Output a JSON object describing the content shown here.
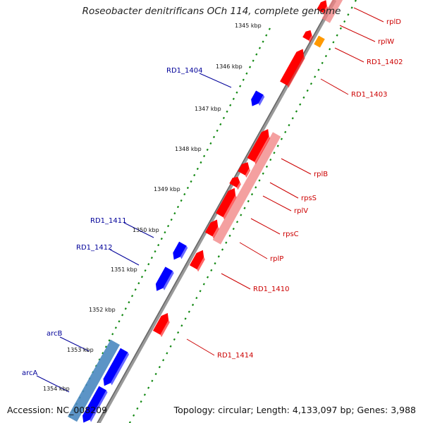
{
  "title": "Roseobacter denitrificans OCh 114, complete genome",
  "accession": "Accession: NC_008209",
  "topology": "Topology: circular; Length: 4,133,097 bp; Genes: 3,988",
  "colors": {
    "forward_gene": "#ff0000",
    "forward_highlight": "#f08080",
    "orange_gene": "#ff9900",
    "reverse_gene": "#0000ff",
    "reverse_highlight": "#4a88c0",
    "right_label": "#cc0000",
    "left_label": "#000099",
    "ticks": "#118811",
    "backbone": "#808080"
  },
  "ruler": [
    {
      "label": "1345 kbp"
    },
    {
      "label": "1346 kbp"
    },
    {
      "label": "1347 kbp"
    },
    {
      "label": "1348 kbp"
    },
    {
      "label": "1349 kbp"
    },
    {
      "label": "1350 kbp"
    },
    {
      "label": "1351 kbp"
    },
    {
      "label": "1352 kbp"
    },
    {
      "label": "1353 kbp"
    },
    {
      "label": "1354 kbp"
    }
  ],
  "right_genes": [
    {
      "label": "rplD"
    },
    {
      "label": "rplW"
    },
    {
      "label": "RD1_1402"
    },
    {
      "label": "RD1_1403"
    },
    {
      "label": "rplB"
    },
    {
      "label": "rpsS"
    },
    {
      "label": "rplV"
    },
    {
      "label": "rpsC"
    },
    {
      "label": "rplP"
    },
    {
      "label": "RD1_1410"
    },
    {
      "label": "RD1_1414"
    }
  ],
  "left_genes": [
    {
      "label": "RD1_1404"
    },
    {
      "label": "RD1_1411"
    },
    {
      "label": "RD1_1412"
    },
    {
      "label": "arcB"
    },
    {
      "label": "arcA"
    }
  ]
}
